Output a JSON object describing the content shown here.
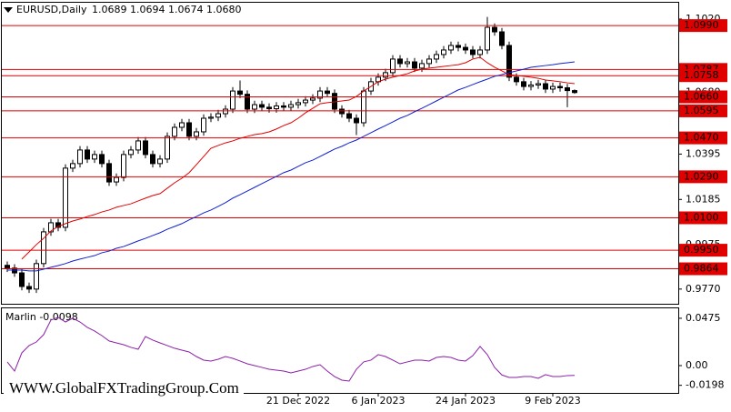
{
  "chart_data": {
    "type": "candlestick",
    "title": "EURUSD,Daily",
    "subtitle": "1.0689 1.0694 1.0674 1.0680",
    "watermark": "WWW.GlobalFXTradingGroup.Com",
    "categories": [
      null,
      null,
      null,
      null,
      null,
      null,
      null,
      null,
      null,
      null,
      null,
      null,
      null,
      null,
      null,
      null,
      null,
      null,
      null,
      null,
      null,
      null,
      null,
      null,
      null,
      null,
      null,
      null,
      null,
      null,
      null,
      null,
      null,
      null,
      null,
      null,
      null,
      null,
      null,
      null,
      "21 Dec 2022",
      null,
      null,
      null,
      null,
      null,
      null,
      null,
      null,
      null,
      null,
      "6 Jan 2023",
      null,
      null,
      null,
      null,
      null,
      null,
      null,
      null,
      null,
      null,
      null,
      "24 Jan 2023",
      null,
      null,
      null,
      null,
      null,
      null,
      null,
      null,
      null,
      null,
      null,
      "9 Feb 2023",
      null,
      null,
      null
    ],
    "open": [
      0.988,
      0.9867,
      0.9845,
      0.9782,
      0.977,
      0.9888,
      1.0035,
      1.0077,
      1.0056,
      1.033,
      1.0351,
      1.0414,
      1.0372,
      1.0393,
      1.0351,
      1.0266,
      1.0287,
      1.0393,
      1.0414,
      1.0456,
      1.0393,
      1.0351,
      1.0372,
      1.0477,
      1.0519,
      1.054,
      1.0477,
      1.0498,
      1.0561,
      1.0566,
      1.0582,
      1.0603,
      1.0687,
      1.0672,
      1.0603,
      1.0624,
      1.0612,
      1.0605,
      1.0618,
      1.0612,
      1.0624,
      1.0633,
      1.0645,
      1.0654,
      1.0687,
      1.0676,
      1.0603,
      1.0582,
      1.0561,
      1.054,
      1.0687,
      1.073,
      1.0751,
      1.0772,
      1.0835,
      1.0814,
      1.0822,
      1.0793,
      1.0814,
      1.0835,
      1.0856,
      1.0877,
      1.0898,
      1.0889,
      1.0877,
      1.0856,
      1.0877,
      1.0982,
      1.0961,
      1.0898,
      1.0751,
      1.073,
      1.0708,
      1.0715,
      1.0721,
      1.0696,
      1.0708,
      1.0702,
      1.0689
    ],
    "high": [
      0.9898,
      0.9885,
      0.9863,
      0.98,
      0.9906,
      1.0053,
      1.0095,
      1.0095,
      1.0348,
      1.0369,
      1.0432,
      1.0432,
      1.0411,
      1.0411,
      1.0369,
      1.0305,
      1.0411,
      1.0432,
      1.0474,
      1.0474,
      1.0411,
      1.039,
      1.0495,
      1.0537,
      1.0558,
      1.0558,
      1.0516,
      1.0579,
      1.0584,
      1.06,
      1.0621,
      1.0705,
      1.0736,
      1.069,
      1.0642,
      1.0642,
      1.063,
      1.0636,
      1.0636,
      1.0642,
      1.0651,
      1.0663,
      1.0672,
      1.0705,
      1.0705,
      1.0694,
      1.0621,
      1.06,
      1.0579,
      1.0705,
      1.0748,
      1.0769,
      1.079,
      1.0853,
      1.0853,
      1.084,
      1.084,
      1.0832,
      1.0853,
      1.0874,
      1.0895,
      1.0916,
      1.0916,
      1.0907,
      1.0895,
      1.0895,
      1.103,
      1.1,
      1.0979,
      1.0916,
      1.0769,
      1.0748,
      1.0733,
      1.0739,
      1.0739,
      1.0726,
      1.0726,
      1.072,
      1.0694
    ],
    "low": [
      0.9849,
      0.9827,
      0.9764,
      0.9752,
      0.9752,
      0.987,
      1.0017,
      1.0038,
      1.0038,
      1.0312,
      1.0333,
      1.0354,
      1.0354,
      1.0333,
      1.0248,
      1.0248,
      1.0269,
      1.0375,
      1.0396,
      1.0375,
      1.0333,
      1.0333,
      1.0354,
      1.0459,
      1.0501,
      1.0459,
      1.0459,
      1.048,
      1.0543,
      1.0548,
      1.0564,
      1.0585,
      1.0654,
      1.0585,
      1.0585,
      1.0594,
      1.0587,
      1.0587,
      1.0594,
      1.0594,
      1.0606,
      1.0615,
      1.0627,
      1.0636,
      1.0658,
      1.0585,
      1.0564,
      1.0543,
      1.0483,
      1.0522,
      1.0669,
      1.0712,
      1.0733,
      1.0754,
      1.0796,
      1.0796,
      1.0775,
      1.0775,
      1.0796,
      1.0817,
      1.0838,
      1.0859,
      1.0871,
      1.0859,
      1.0838,
      1.0838,
      1.0859,
      1.0943,
      1.088,
      1.0733,
      1.0712,
      1.069,
      1.069,
      1.0697,
      1.0678,
      1.0678,
      1.0684,
      1.0612,
      1.0674
    ],
    "close": [
      0.9867,
      0.9845,
      0.9782,
      0.977,
      0.9888,
      1.0035,
      1.0077,
      1.0056,
      1.033,
      1.0351,
      1.0414,
      1.0372,
      1.0393,
      1.0351,
      1.0266,
      1.0287,
      1.0393,
      1.0414,
      1.0456,
      1.0393,
      1.0351,
      1.0372,
      1.0477,
      1.0519,
      1.054,
      1.0477,
      1.0498,
      1.0561,
      1.0566,
      1.0582,
      1.0603,
      1.0687,
      1.0672,
      1.0603,
      1.0624,
      1.0612,
      1.0605,
      1.0618,
      1.0612,
      1.0624,
      1.0633,
      1.0645,
      1.0654,
      1.0687,
      1.0676,
      1.0603,
      1.0582,
      1.0561,
      1.054,
      1.0687,
      1.073,
      1.0751,
      1.0772,
      1.0835,
      1.0814,
      1.0822,
      1.0793,
      1.0814,
      1.0835,
      1.0856,
      1.0877,
      1.0898,
      1.0889,
      1.0877,
      1.0856,
      1.0877,
      1.0982,
      1.0961,
      1.0898,
      1.0751,
      1.073,
      1.0708,
      1.0715,
      1.0721,
      1.0696,
      1.0708,
      1.0702,
      1.0689,
      1.068
    ],
    "up_color": "#ffffff",
    "down_color": "#000000",
    "lines": [
      {
        "color": "#e00000",
        "values": [
          null,
          null,
          0.9909,
          0.9942,
          0.9976,
          1.0005,
          1.0039,
          1.006,
          1.0073,
          1.0085,
          1.0094,
          1.0106,
          1.0115,
          1.0127,
          1.0136,
          1.0149,
          1.0157,
          1.0165,
          1.0178,
          1.0191,
          1.0203,
          1.0212,
          1.0237,
          1.0262,
          1.0283,
          1.0309,
          1.0346,
          1.0384,
          1.0422,
          1.0435,
          1.0447,
          1.0456,
          1.0468,
          1.0477,
          1.0485,
          1.049,
          1.0498,
          1.0511,
          1.0527,
          1.054,
          1.0561,
          1.0586,
          1.0607,
          1.0628,
          1.0633,
          1.0637,
          1.0641,
          1.0645,
          1.0662,
          1.0687,
          1.0708,
          1.073,
          1.0742,
          1.0751,
          1.0759,
          1.0767,
          1.078,
          1.0788,
          1.0793,
          1.0797,
          1.0801,
          1.0805,
          1.0809,
          1.0818,
          1.0835,
          1.0843,
          1.0818,
          1.0797,
          1.078,
          1.0763,
          1.0759,
          1.0755,
          1.0751,
          1.0746,
          1.0738,
          1.0734,
          1.073,
          1.0725,
          1.0721
        ]
      },
      {
        "color": "#1020d0",
        "values": [
          0.9858,
          0.9858,
          0.9858,
          0.9854,
          0.9854,
          0.9862,
          0.9871,
          0.9879,
          0.9888,
          0.99,
          0.9909,
          0.9917,
          0.9925,
          0.9938,
          0.9946,
          0.9959,
          0.9967,
          0.998,
          0.9993,
          1.0005,
          1.0018,
          1.0031,
          1.0047,
          1.006,
          1.0073,
          1.009,
          1.0106,
          1.0123,
          1.0136,
          1.0153,
          1.017,
          1.0191,
          1.0207,
          1.0224,
          1.0241,
          1.0258,
          1.0275,
          1.0292,
          1.0309,
          1.0321,
          1.0338,
          1.0355,
          1.0367,
          1.0384,
          1.0401,
          1.0418,
          1.0431,
          1.0447,
          1.046,
          1.0477,
          1.0494,
          1.0511,
          1.0527,
          1.0544,
          1.0561,
          1.0574,
          1.0591,
          1.0607,
          1.0624,
          1.0641,
          1.0658,
          1.0675,
          1.0692,
          1.0704,
          1.0717,
          1.073,
          1.0742,
          1.0755,
          1.0763,
          1.0772,
          1.078,
          1.0788,
          1.0797,
          1.0801,
          1.0805,
          1.0809,
          1.0814,
          1.0818,
          1.0822
        ]
      }
    ],
    "level_color": "#e00000",
    "levels": [
      {
        "value": 1.099,
        "label": "1.0990"
      },
      1.0787,
      1.0758,
      {
        "value": 1.066,
        "label": "1.0660"
      },
      1.0595,
      {
        "value": 1.047,
        "label": "1.0470"
      },
      {
        "value": 1.029,
        "label": "1.0290"
      },
      {
        "value": 1.01,
        "label": "1.0100"
      },
      {
        "value": 0.995,
        "label": "0.9950"
      },
      0.9864
    ],
    "ylim": [
      0.9702,
      1.11
    ],
    "yticks": [
      {
        "value": 1.102,
        "label": "1.1020"
      },
      {
        "value": 1.068,
        "label": "1.0680"
      },
      1.0395,
      1.0185,
      0.9975,
      {
        "value": 0.977,
        "label": "0.9770"
      }
    ],
    "indicator": {
      "title": "Marlin -0.0098",
      "color": "#8b1fa8",
      "values": [
        0.0037,
        -0.0055,
        0.0128,
        0.0201,
        0.0237,
        0.0311,
        0.0457,
        0.0484,
        0.0438,
        0.0475,
        0.0438,
        0.0384,
        0.0347,
        0.0301,
        0.0247,
        0.0228,
        0.021,
        0.0183,
        0.0164,
        0.0292,
        0.0256,
        0.0228,
        0.0201,
        0.0174,
        0.0155,
        0.0137,
        0.0091,
        0.0055,
        0.0046,
        0.0064,
        0.0091,
        0.0073,
        0.0046,
        0.0018,
        0,
        -0.0018,
        -0.0037,
        -0.0046,
        -0.0055,
        -0.0073,
        -0.0055,
        -0.0037,
        -0.0009,
        0.0009,
        -0.0055,
        -0.011,
        -0.0146,
        -0.0155,
        -0.0037,
        0.0037,
        0.0055,
        0.011,
        0.0091,
        0.0055,
        0.0018,
        0.0037,
        0.0055,
        0.0055,
        0.0046,
        0.0082,
        0.0091,
        0.0082,
        0.0055,
        0.0046,
        0.01,
        0.0192,
        0.011,
        -0.0018,
        -0.0094,
        -0.0119,
        -0.0119,
        -0.011,
        -0.011,
        -0.0128,
        -0.0091,
        -0.011,
        -0.011,
        -0.01,
        -0.0098
      ],
      "ylim": [
        -0.0274,
        0.0584
      ],
      "yticks": [
        0.0475,
        {
          "value": 0,
          "label": "0.00"
        },
        -0.0198
      ]
    }
  }
}
